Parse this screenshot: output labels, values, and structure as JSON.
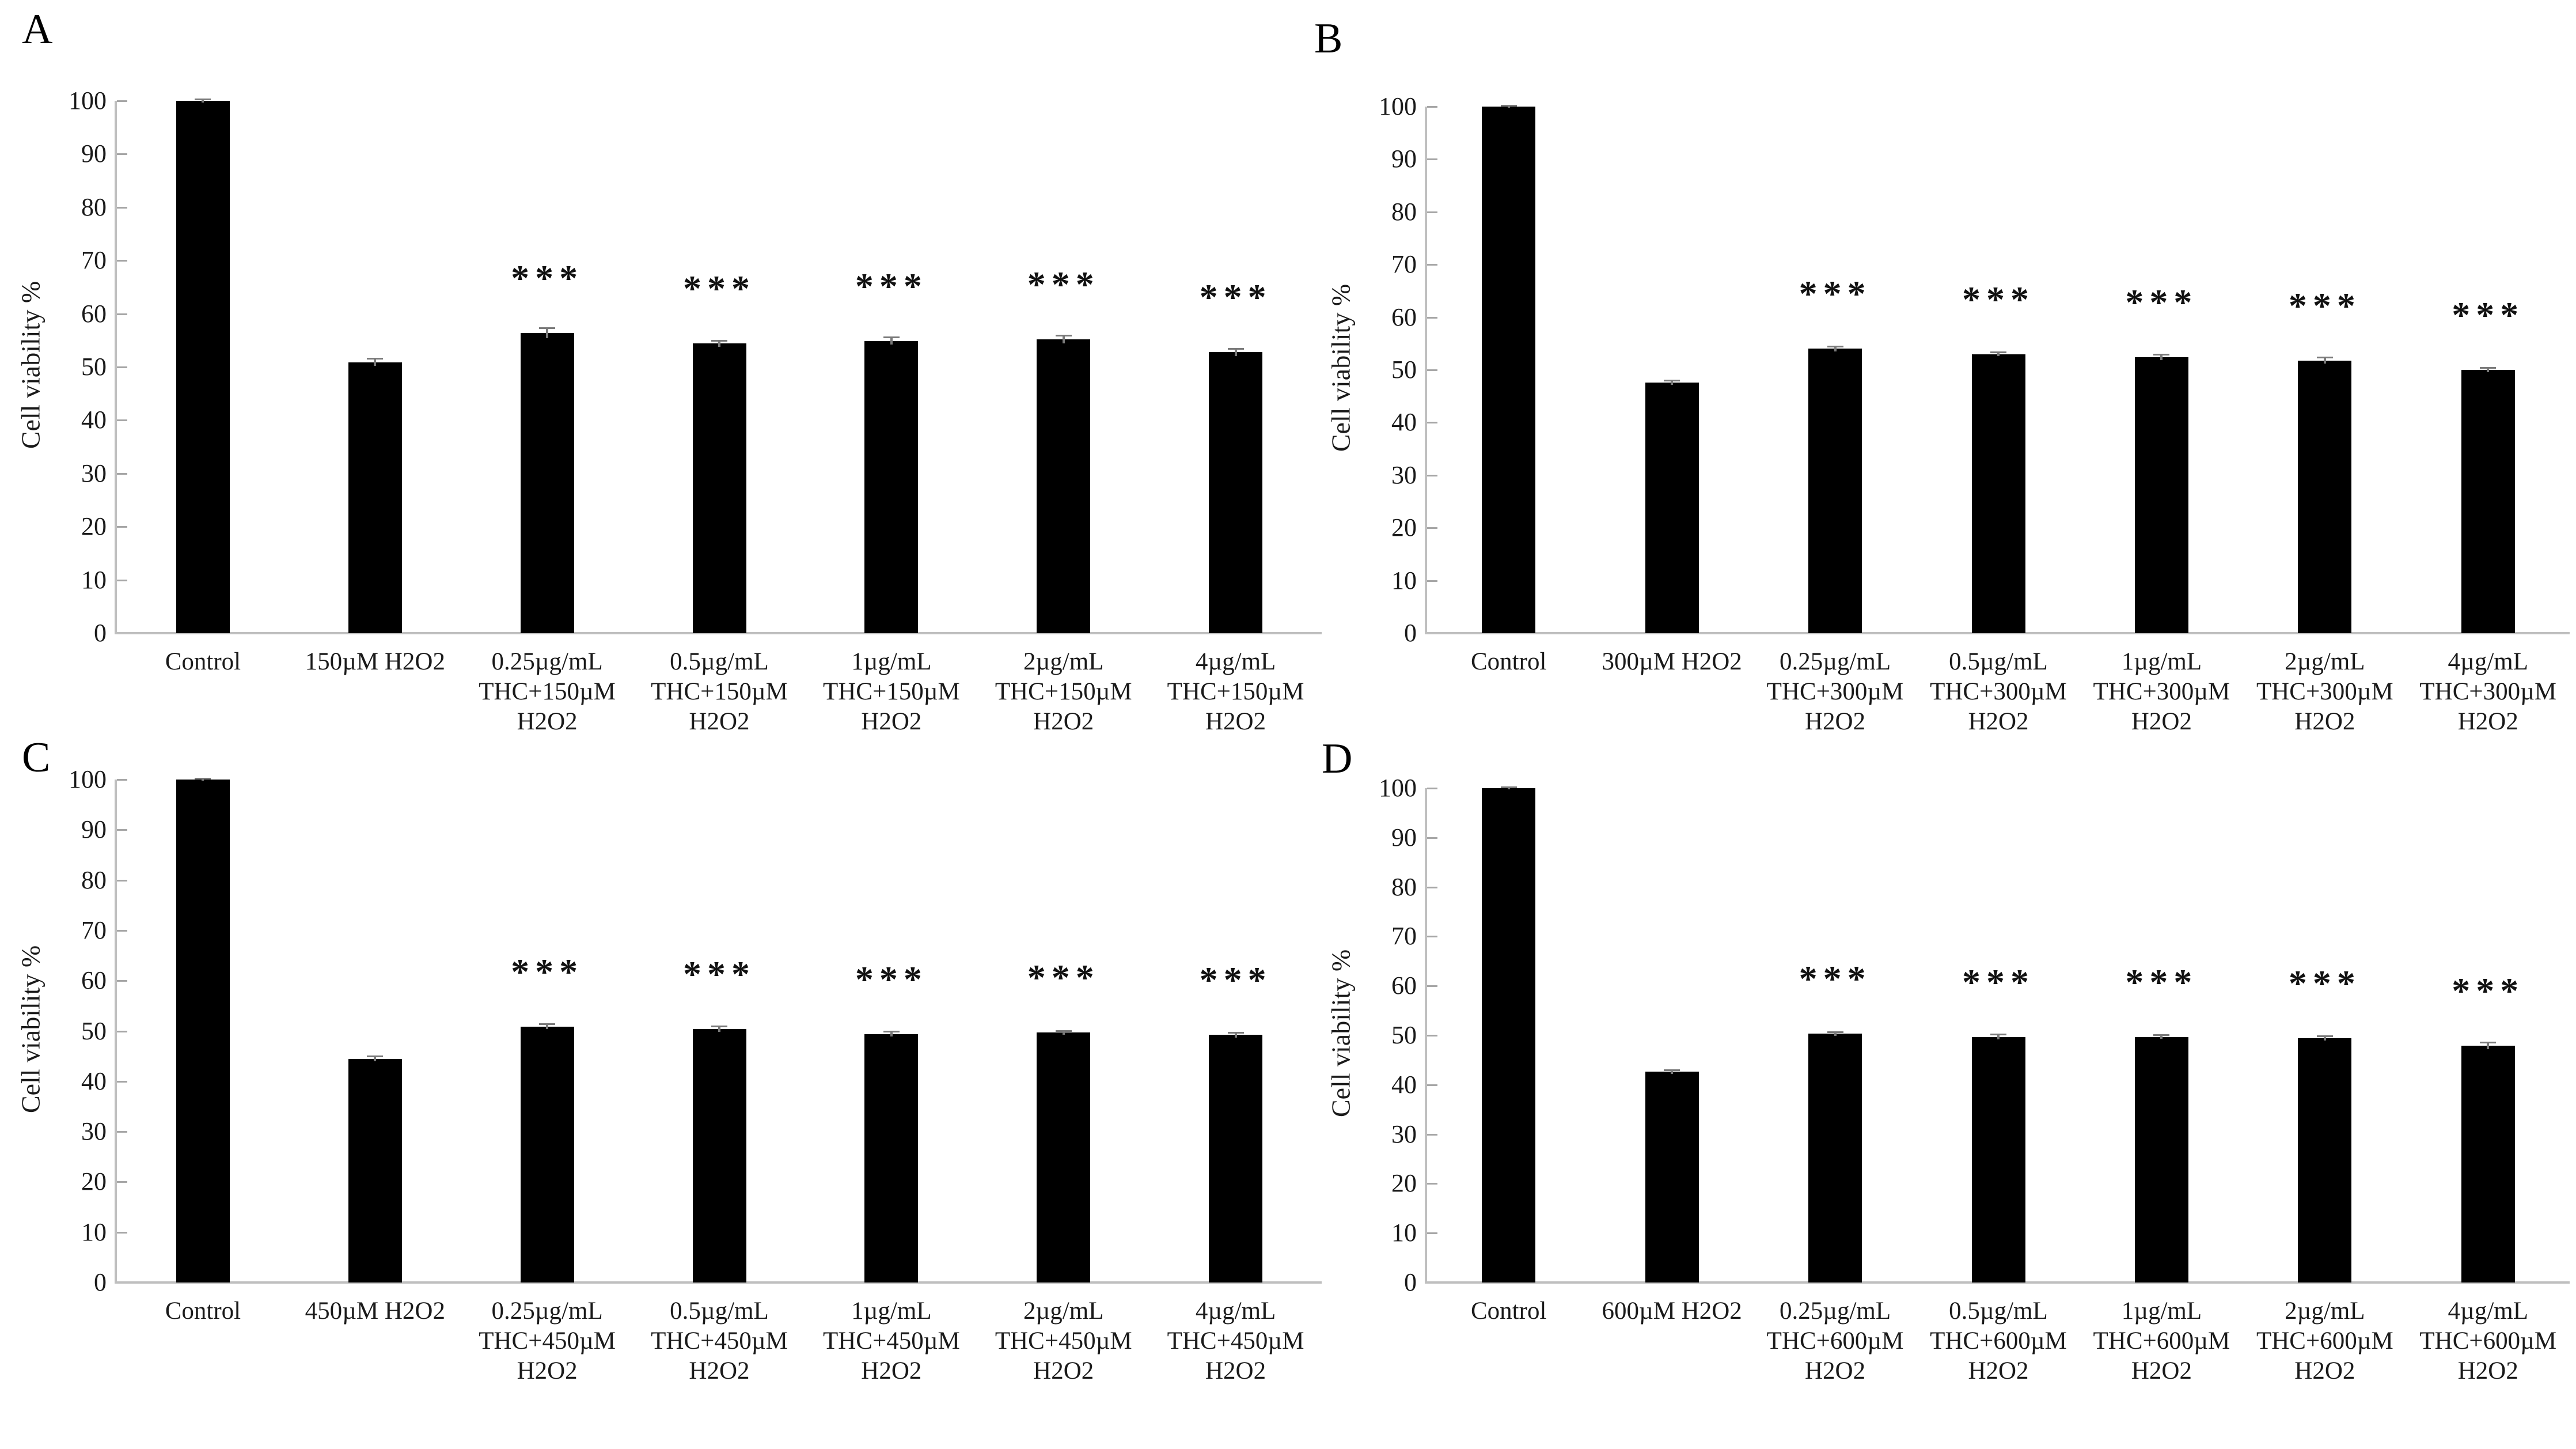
{
  "figure": {
    "y_axis_title": "Cell viability %",
    "significance_marker": "***",
    "colors": {
      "background": "#ffffff",
      "bar": "#000000",
      "axis_line": "#bfbfbf",
      "tick_mark": "#a6a6a6",
      "text": "#1a1a1a",
      "error_bar": "#7a7a7a",
      "significance": "#111111"
    }
  },
  "chart_data": [
    {
      "type": "bar",
      "panel_label": "A",
      "ylabel": "Cell viability %",
      "ylim": [
        0,
        100
      ],
      "ytick_step": 10,
      "grid": false,
      "legend": false,
      "categories": [
        "Control",
        "150µM H2O2",
        "0.25µg/mL\nTHC+150µM\nH2O2",
        "0.5µg/mL\nTHC+150µM\nH2O2",
        "1µg/mL\nTHC+150µM\nH2O2",
        "2µg/mL\nTHC+150µM\nH2O2",
        "4µg/mL\nTHC+150µM\nH2O2"
      ],
      "values": [
        100,
        50.9,
        56.4,
        54.4,
        54.9,
        55.2,
        52.8
      ],
      "errors": [
        0.3,
        0.7,
        1.0,
        0.6,
        0.7,
        0.8,
        0.7
      ],
      "significance": [
        "",
        "",
        "***",
        "***",
        "***",
        "***",
        "***"
      ]
    },
    {
      "type": "bar",
      "panel_label": "B",
      "ylabel": "Cell viability %",
      "ylim": [
        0,
        100
      ],
      "ytick_step": 10,
      "grid": false,
      "legend": false,
      "categories": [
        "Control",
        "300µM H2O2",
        "0.25µg/mL\nTHC+300µM\nH2O2",
        "0.5µg/mL\nTHC+300µM\nH2O2",
        "1µg/mL\nTHC+300µM\nH2O2",
        "2µg/mL\nTHC+300µM\nH2O2",
        "4µg/mL\nTHC+300µM\nH2O2"
      ],
      "values": [
        100,
        47.6,
        54.0,
        53.0,
        52.4,
        51.8,
        50.0
      ],
      "errors": [
        0.2,
        0.4,
        0.5,
        0.4,
        0.5,
        0.6,
        0.4
      ],
      "significance": [
        "",
        "",
        "***",
        "***",
        "***",
        "***",
        "***"
      ]
    },
    {
      "type": "bar",
      "panel_label": "C",
      "ylabel": "Cell viability %",
      "ylim": [
        0,
        100
      ],
      "ytick_step": 10,
      "grid": false,
      "legend": false,
      "categories": [
        "Control",
        "450µM H2O2",
        "0.25µg/mL\nTHC+450µM\nH2O2",
        "0.5µg/mL\nTHC+450µM\nH2O2",
        "1µg/mL\nTHC+450µM\nH2O2",
        "2µg/mL\nTHC+450µM\nH2O2",
        "4µg/mL\nTHC+450µM\nH2O2"
      ],
      "values": [
        100,
        44.5,
        50.9,
        50.4,
        49.4,
        49.7,
        49.2
      ],
      "errors": [
        0.2,
        0.5,
        0.5,
        0.6,
        0.5,
        0.4,
        0.5
      ],
      "significance": [
        "",
        "",
        "***",
        "***",
        "***",
        "***",
        "***"
      ]
    },
    {
      "type": "bar",
      "panel_label": "D",
      "ylabel": "Cell viability %",
      "ylim": [
        0,
        100
      ],
      "ytick_step": 10,
      "grid": false,
      "legend": false,
      "categories": [
        "Control",
        "600µM H2O2",
        "0.25µg/mL\nTHC+600µM\nH2O2",
        "0.5µg/mL\nTHC+600µM\nH2O2",
        "1µg/mL\nTHC+600µM\nH2O2",
        "2µg/mL\nTHC+600µM\nH2O2",
        "4µg/mL\nTHC+600µM\nH2O2"
      ],
      "values": [
        100,
        42.6,
        50.3,
        49.7,
        49.7,
        49.4,
        47.9
      ],
      "errors": [
        0.2,
        0.4,
        0.4,
        0.5,
        0.4,
        0.5,
        0.7
      ],
      "significance": [
        "",
        "",
        "***",
        "***",
        "***",
        "***",
        "***"
      ]
    }
  ]
}
